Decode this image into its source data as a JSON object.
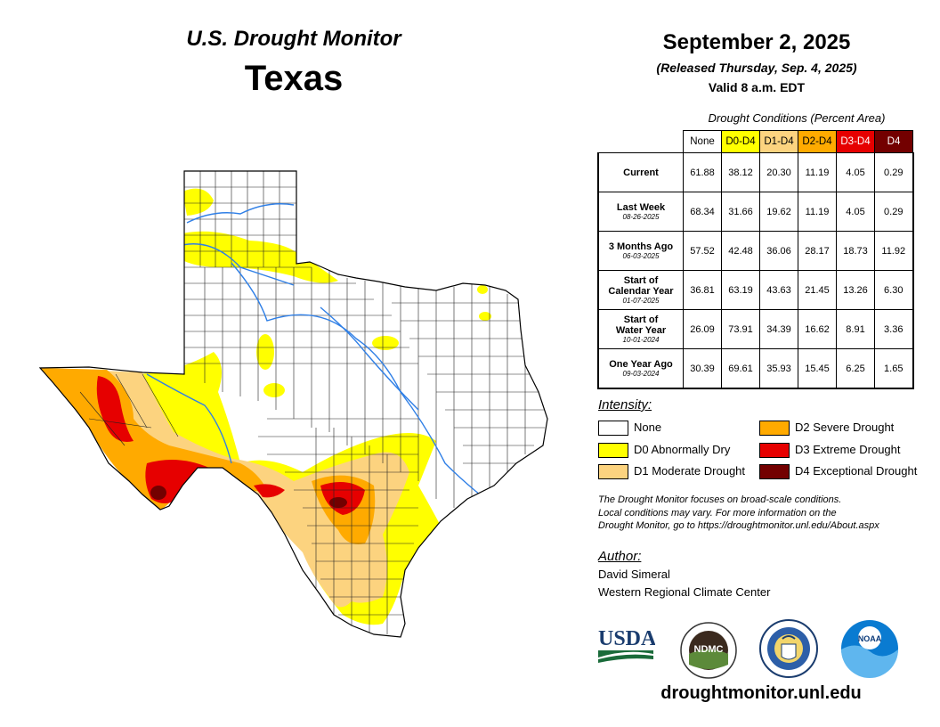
{
  "header": {
    "agency": "U.S. Drought Monitor",
    "state": "Texas"
  },
  "date": {
    "map_date": "September 2, 2025",
    "released": "(Released Thursday, Sep. 4, 2025)",
    "valid": "Valid 8 a.m. EDT"
  },
  "table": {
    "caption": "Drought Conditions (Percent Area)",
    "columns": [
      {
        "label": "None",
        "color": "#ffffff",
        "text_color": "#000000"
      },
      {
        "label": "D0-D4",
        "color": "#ffff00",
        "text_color": "#000000"
      },
      {
        "label": "D1-D4",
        "color": "#fcd37f",
        "text_color": "#000000"
      },
      {
        "label": "D2-D4",
        "color": "#ffaa00",
        "text_color": "#000000"
      },
      {
        "label": "D3-D4",
        "color": "#e60000",
        "text_color": "#ffffff"
      },
      {
        "label": "D4",
        "color": "#730000",
        "text_color": "#ffffff"
      }
    ],
    "rows": [
      {
        "label": "Current",
        "label2": "",
        "date": "",
        "values": [
          "61.88",
          "38.12",
          "20.30",
          "11.19",
          "4.05",
          "0.29"
        ]
      },
      {
        "label": "Last Week",
        "label2": "",
        "date": "08-26-2025",
        "values": [
          "68.34",
          "31.66",
          "19.62",
          "11.19",
          "4.05",
          "0.29"
        ]
      },
      {
        "label": "3 Months Ago",
        "label2": "",
        "date": "06-03-2025",
        "values": [
          "57.52",
          "42.48",
          "36.06",
          "28.17",
          "18.73",
          "11.92"
        ]
      },
      {
        "label": "Start of",
        "label2": "Calendar Year",
        "date": "01-07-2025",
        "values": [
          "36.81",
          "63.19",
          "43.63",
          "21.45",
          "13.26",
          "6.30"
        ]
      },
      {
        "label": "Start of",
        "label2": "Water Year",
        "date": "10-01-2024",
        "values": [
          "26.09",
          "73.91",
          "34.39",
          "16.62",
          "8.91",
          "3.36"
        ]
      },
      {
        "label": "One Year Ago",
        "label2": "",
        "date": "09-03-2024",
        "values": [
          "30.39",
          "69.61",
          "35.93",
          "15.45",
          "6.25",
          "1.65"
        ]
      }
    ]
  },
  "legend": {
    "title": "Intensity:",
    "items": [
      {
        "label": "None",
        "color": "#ffffff"
      },
      {
        "label": "D0 Abnormally Dry",
        "color": "#ffff00"
      },
      {
        "label": "D1 Moderate Drought",
        "color": "#fcd37f"
      },
      {
        "label": "D2 Severe Drought",
        "color": "#ffaa00"
      },
      {
        "label": "D3 Extreme Drought",
        "color": "#e60000"
      },
      {
        "label": "D4 Exceptional Drought",
        "color": "#730000"
      }
    ]
  },
  "note": {
    "line1": "The Drought Monitor focuses on broad-scale conditions.",
    "line2": "Local conditions may vary. For more information on the",
    "line3": "Drought Monitor, go to https://droughtmonitor.unl.edu/About.aspx"
  },
  "author": {
    "title": "Author:",
    "name": "David Simeral",
    "org": "Western Regional Climate Center"
  },
  "logos": {
    "usda": "USDA",
    "ndmc": "NDMC",
    "noaa": "NOAA"
  },
  "footer": {
    "url": "droughtmonitor.unl.edu"
  }
}
